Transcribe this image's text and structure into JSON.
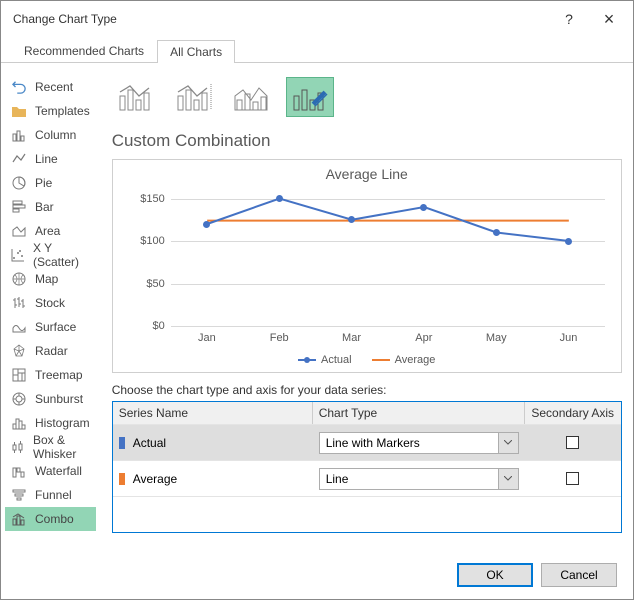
{
  "window": {
    "title": "Change Chart Type",
    "help": "?",
    "close": "×"
  },
  "tabs": {
    "recommended": "Recommended Charts",
    "all": "All Charts"
  },
  "sidebar": {
    "items": [
      {
        "label": "Recent"
      },
      {
        "label": "Templates"
      },
      {
        "label": "Column"
      },
      {
        "label": "Line"
      },
      {
        "label": "Pie"
      },
      {
        "label": "Bar"
      },
      {
        "label": "Area"
      },
      {
        "label": "X Y (Scatter)"
      },
      {
        "label": "Map"
      },
      {
        "label": "Stock"
      },
      {
        "label": "Surface"
      },
      {
        "label": "Radar"
      },
      {
        "label": "Treemap"
      },
      {
        "label": "Sunburst"
      },
      {
        "label": "Histogram"
      },
      {
        "label": "Box & Whisker"
      },
      {
        "label": "Waterfall"
      },
      {
        "label": "Funnel"
      },
      {
        "label": "Combo"
      }
    ]
  },
  "section_title": "Custom Combination",
  "chart": {
    "type": "combo",
    "title": "Average Line",
    "categories": [
      "Jan",
      "Feb",
      "Mar",
      "Apr",
      "May",
      "Jun"
    ],
    "series": {
      "actual": {
        "label": "Actual",
        "values": [
          120,
          150,
          125,
          140,
          110,
          100
        ],
        "color": "#4472c4",
        "marker": true
      },
      "average": {
        "label": "Average",
        "values": [
          124,
          124,
          124,
          124,
          124,
          124
        ],
        "color": "#ed7d31",
        "marker": false
      }
    },
    "ylim": [
      0,
      160
    ],
    "ytick_step": 50,
    "ytick_labels": [
      "$0",
      "$50",
      "$100",
      "$150"
    ],
    "y_currency_prefix": "$",
    "gridline_color": "#d9d9d9",
    "background_color": "#ffffff",
    "title_fontsize": 14,
    "label_fontsize": 11,
    "label_color": "#595959"
  },
  "series_config": {
    "instruction": "Choose the chart type and axis for your data series:",
    "headers": {
      "name": "Series Name",
      "type": "Chart Type",
      "axis": "Secondary Axis"
    },
    "rows": [
      {
        "name": "Actual",
        "color": "#4472c4",
        "type": "Line with Markers",
        "secondary": false,
        "selected": true
      },
      {
        "name": "Average",
        "color": "#ed7d31",
        "type": "Line",
        "secondary": false,
        "selected": false
      }
    ]
  },
  "footer": {
    "ok": "OK",
    "cancel": "Cancel"
  }
}
